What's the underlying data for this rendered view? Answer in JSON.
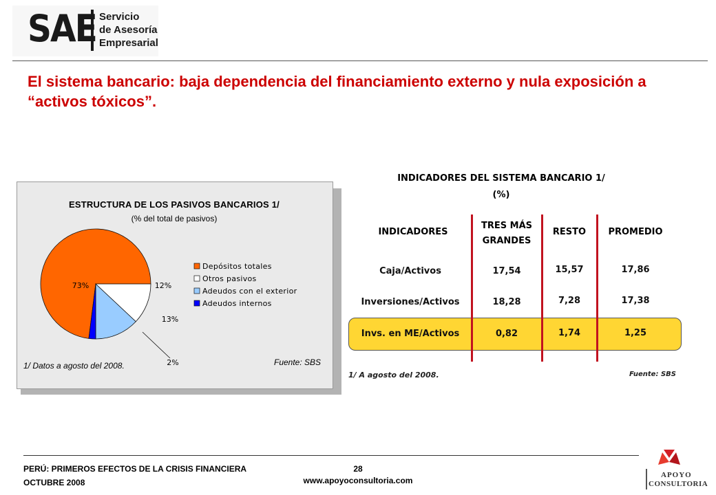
{
  "logo": {
    "mark": "SAE",
    "lines": [
      "Servicio",
      "de Asesoría",
      "Empresarial"
    ]
  },
  "title": "El sistema bancario: baja dependencia del financiamiento externo y nula exposición a “activos tóxicos”.",
  "pie_panel": {
    "title": "ESTRUCTURA DE LOS PASIVOS BANCARIOS 1/",
    "subtitle": "(% del total de pasivos)",
    "footnote": "1/ Datos a agosto del 2008.",
    "source": "Fuente: SBS"
  },
  "table": {
    "title": "INDICADORES DEL SISTEMA BANCARIO 1/",
    "unit": "(%)",
    "headers": [
      "INDICADORES",
      "TRES MÁS GRANDES",
      "RESTO",
      "PROMEDIO"
    ],
    "rows": [
      [
        "Caja/Activos",
        "17,54",
        "15,57",
        "17,86"
      ],
      [
        "Inversiones/Activos",
        "18,28",
        "7,28",
        "17,38"
      ],
      [
        "Invs. en ME/Activos",
        "0,82",
        "1,74",
        "1,25"
      ]
    ],
    "highlight_row": 2,
    "footnote": "1/ A agosto del 2008.",
    "source": "Fuente: SBS"
  },
  "chart_data": {
    "type": "pie",
    "title": "ESTRUCTURA DE LOS PASIVOS BANCARIOS 1/",
    "subtitle": "(% del total de pasivos)",
    "slices": [
      {
        "label": "Depósitos totales",
        "value": 73,
        "display": "73%",
        "color": "#ff6600"
      },
      {
        "label": "Otros pasivos",
        "value": 12,
        "display": "12%",
        "color": "#ffffff"
      },
      {
        "label": "Adeudos con el exterior",
        "value": 13,
        "display": "13%",
        "color": "#99ccff"
      },
      {
        "label": "Adeudos internos",
        "value": 2,
        "display": "2%",
        "color": "#0000ff"
      }
    ],
    "legend_position": "right"
  },
  "footer": {
    "line1": "PERÚ: PRIMEROS EFECTOS DE LA CRISIS FINANCIERA",
    "line2": "OCTUBRE 2008",
    "page": "28",
    "website": "www.apoyoconsultoria.com",
    "brand_line1": "APOYO",
    "brand_line2": "CONSULTORIA"
  },
  "colors": {
    "title_red": "#cc0000",
    "table_divider": "#c1121f",
    "highlight": "#ffd633"
  }
}
